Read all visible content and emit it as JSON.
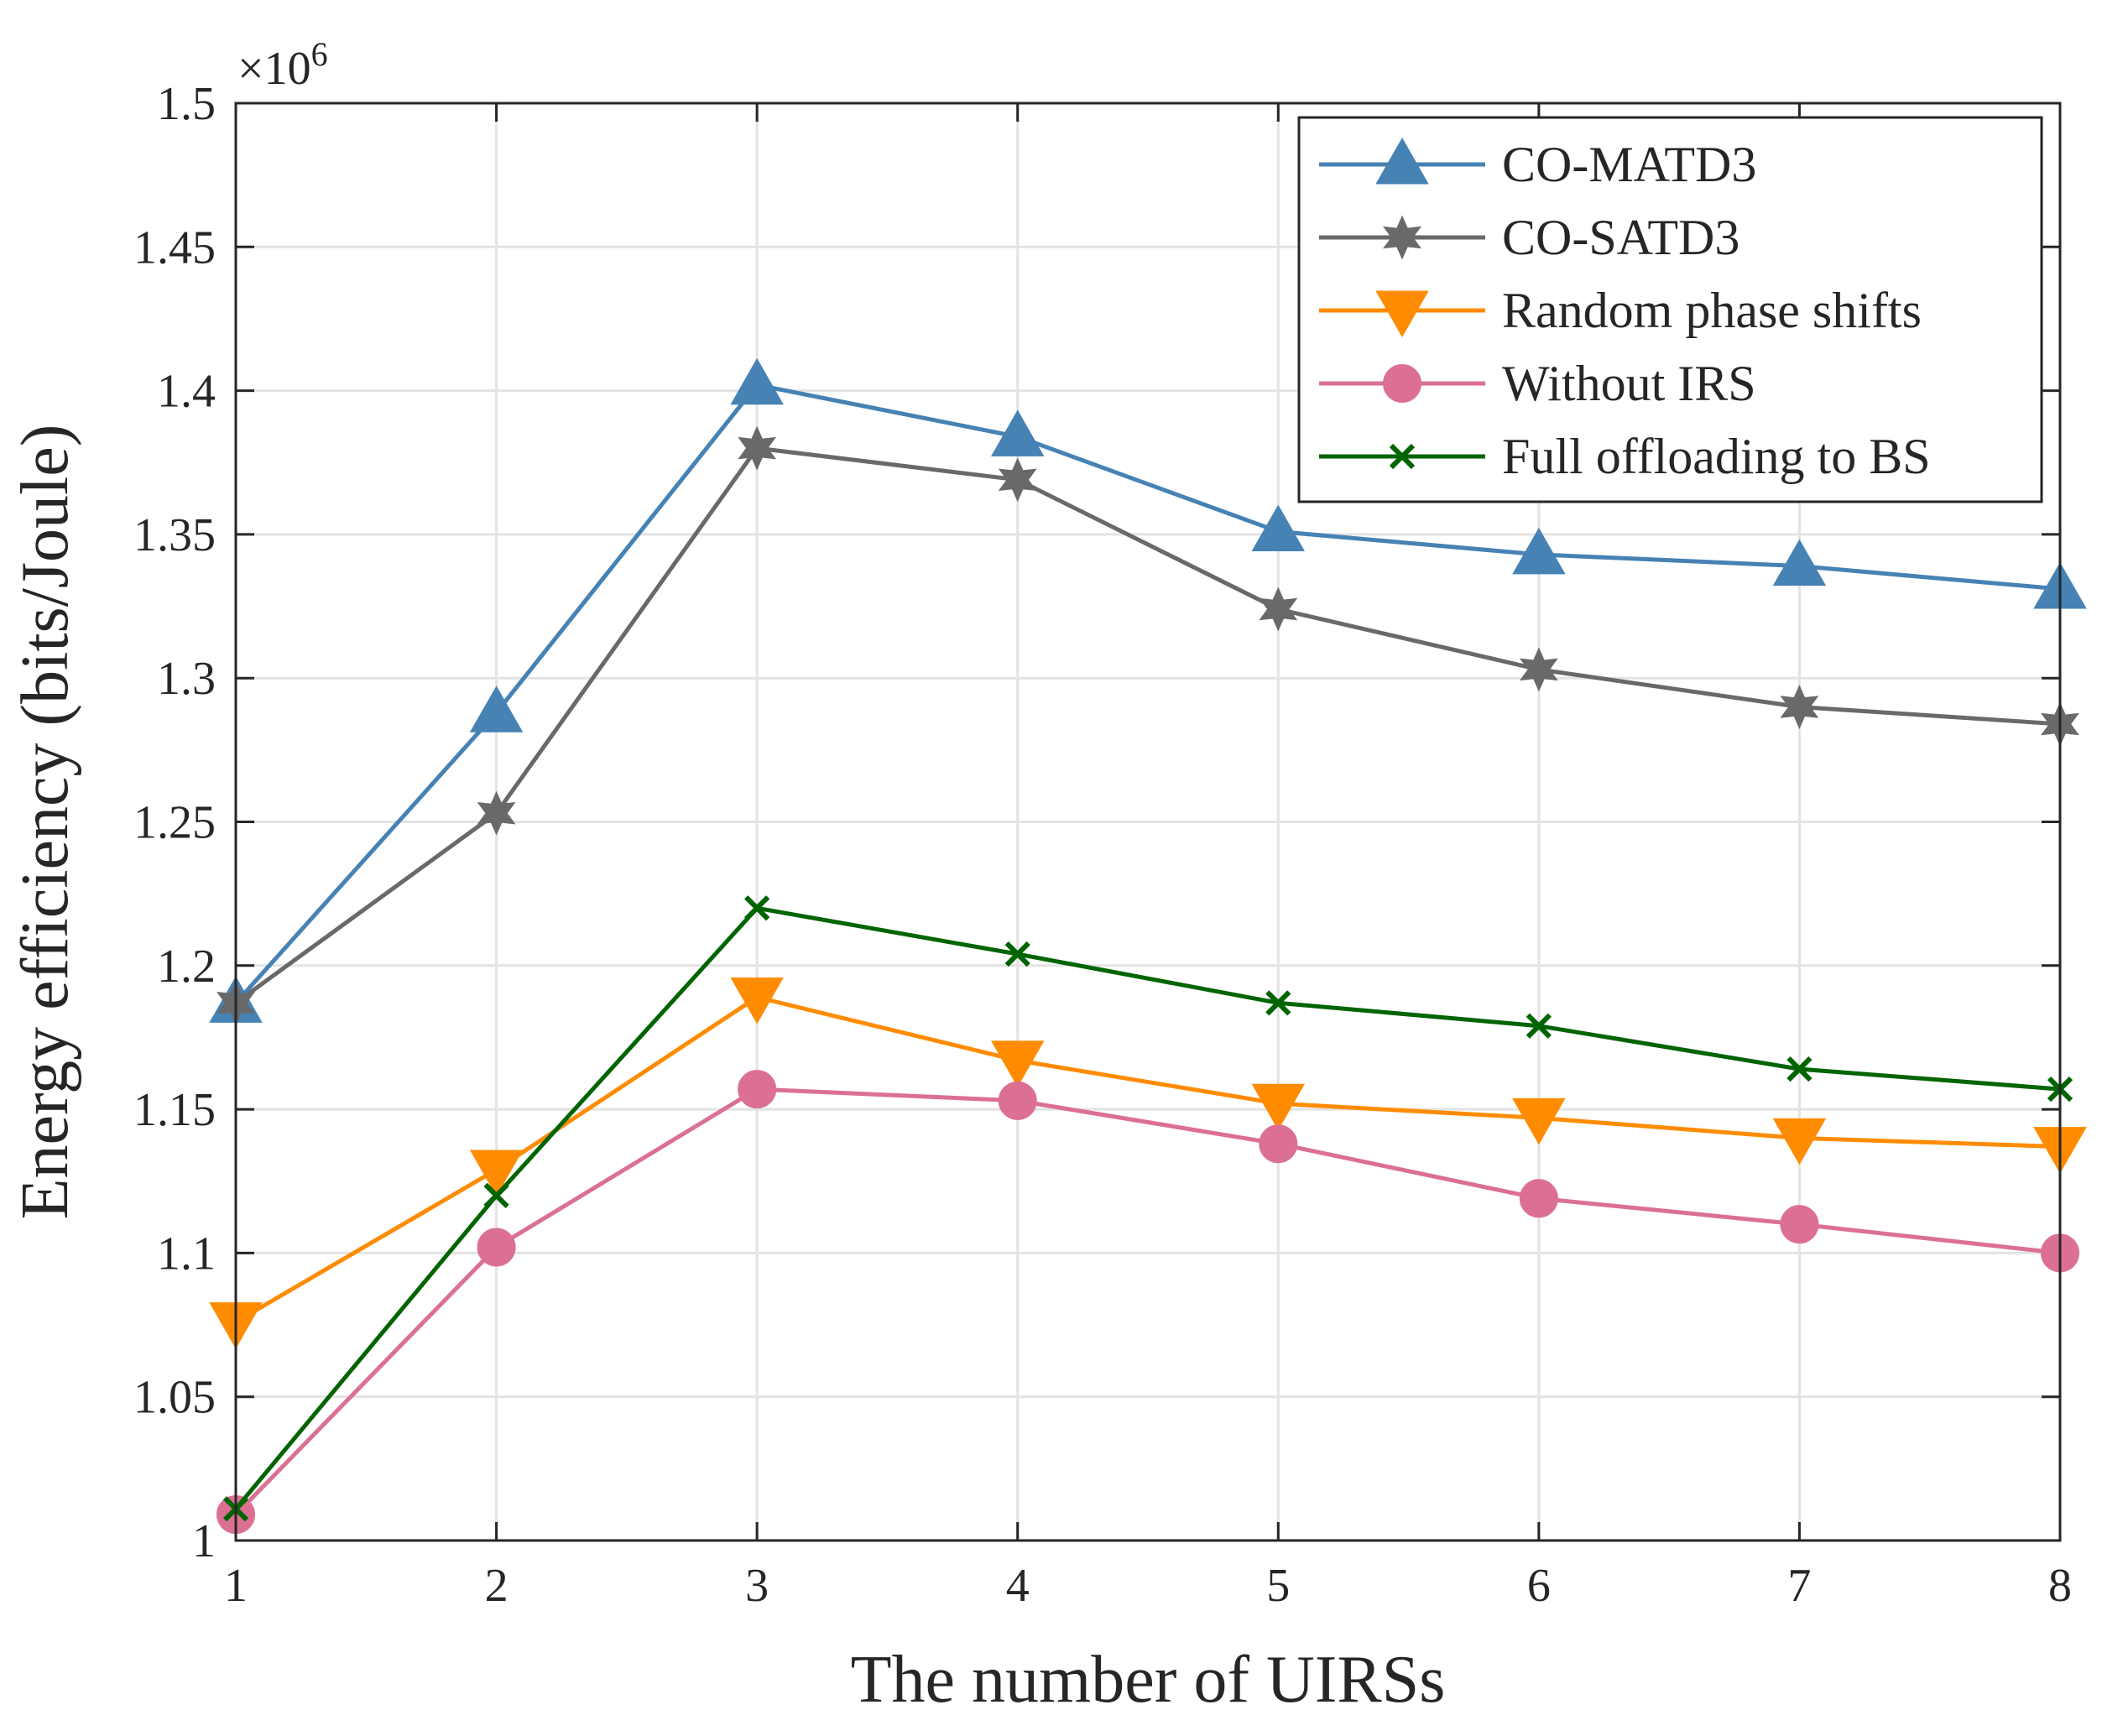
{
  "chart_data": {
    "type": "line",
    "title": "",
    "xlabel": "The number of UIRSs",
    "ylabel": "Energy efficiency (bits/Joule)",
    "exponent_label": "×10",
    "exponent_power": "6",
    "x": [
      1,
      2,
      3,
      4,
      5,
      6,
      7,
      8
    ],
    "xlim": [
      1,
      8
    ],
    "ylim": [
      1,
      1.5
    ],
    "xticks": [
      "1",
      "2",
      "3",
      "4",
      "5",
      "6",
      "7",
      "8"
    ],
    "yticks": [
      "1",
      "1.05",
      "1.1",
      "1.15",
      "1.2",
      "1.25",
      "1.3",
      "1.35",
      "1.4",
      "1.45",
      "1.5"
    ],
    "grid": true,
    "legend_position": "top-right",
    "series": [
      {
        "name": "CO-MATD3",
        "color": "#4682b4",
        "marker": "triangle-up",
        "values": [
          1.187,
          1.288,
          1.402,
          1.384,
          1.351,
          1.343,
          1.339,
          1.331
        ]
      },
      {
        "name": "CO-SATD3",
        "color": "#696969",
        "marker": "hexagram",
        "values": [
          1.187,
          1.253,
          1.38,
          1.369,
          1.324,
          1.303,
          1.29,
          1.284
        ]
      },
      {
        "name": "Random phase shifts",
        "color": "#ff8c00",
        "marker": "triangle-down",
        "values": [
          1.076,
          1.129,
          1.189,
          1.167,
          1.152,
          1.147,
          1.14,
          1.137
        ]
      },
      {
        "name": "Without IRS",
        "color": "#db7093",
        "marker": "circle",
        "values": [
          1.009,
          1.102,
          1.157,
          1.153,
          1.138,
          1.119,
          1.11,
          1.1
        ]
      },
      {
        "name": "Full offloading to BS",
        "color": "#006400",
        "marker": "x",
        "values": [
          1.011,
          1.12,
          1.22,
          1.204,
          1.187,
          1.179,
          1.164,
          1.157
        ]
      }
    ]
  }
}
